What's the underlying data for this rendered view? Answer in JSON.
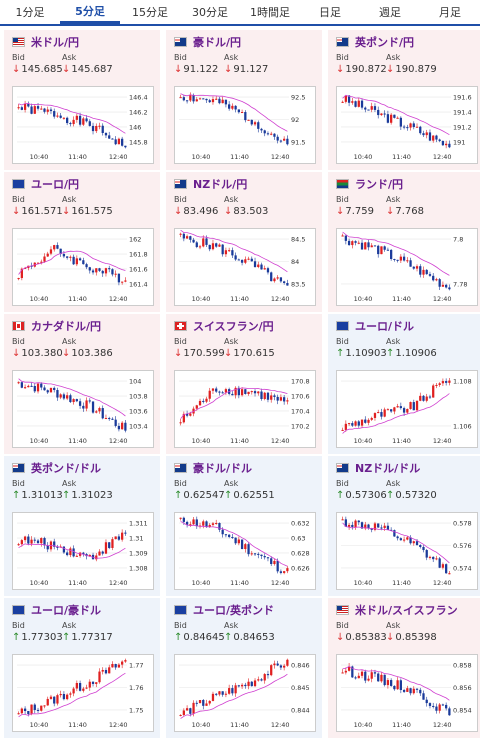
{
  "tabs": [
    {
      "label": "1分足",
      "active": false
    },
    {
      "label": "5分足",
      "active": true
    },
    {
      "label": "15分足",
      "active": false
    },
    {
      "label": "30分足",
      "active": false
    },
    {
      "label": "1時間足",
      "active": false
    },
    {
      "label": "日足",
      "active": false
    },
    {
      "label": "週足",
      "active": false
    },
    {
      "label": "月足",
      "active": false
    }
  ],
  "bid_label": "Bid",
  "ask_label": "Ask",
  "time_labels": [
    "10:40",
    "11:40",
    "12:40"
  ],
  "colors": {
    "title": "#6a1f8e",
    "down": "#d33333",
    "up": "#2a8a2a",
    "bull": "#e02020",
    "bear": "#1a3a9a",
    "ma": "#d040d0",
    "jpy_bg": "#fbeff0",
    "other_bg": "#eef3fa"
  },
  "cards": [
    {
      "title": "米ドル/円",
      "flag": "us-flag",
      "bg": "pink",
      "dir": "down",
      "bid": "145.685",
      "ask": "145.687",
      "yticks": [
        "146.4",
        "146.2",
        "146",
        "145.8"
      ],
      "trend": [
        0.7,
        0.6,
        0.4,
        0.05
      ],
      "seed": 1
    },
    {
      "title": "豪ドル/円",
      "flag": "au-flag",
      "bg": "pink",
      "dir": "down",
      "bid": "91.122",
      "ask": "91.127",
      "yticks": [
        "92.5",
        "92",
        "91.5"
      ],
      "trend": [
        0.9,
        0.8,
        0.5,
        0.05
      ],
      "seed": 2
    },
    {
      "title": "英ポンド/円",
      "flag": "uk-flag",
      "bg": "pink",
      "dir": "down",
      "bid": "190.872",
      "ask": "190.879",
      "yticks": [
        "191.6",
        "191.4",
        "191.2",
        "191"
      ],
      "trend": [
        0.85,
        0.6,
        0.35,
        0.05
      ],
      "seed": 3
    },
    {
      "title": "ユーロ/円",
      "flag": "eu-flag",
      "bg": "pink",
      "dir": "down",
      "bid": "161.571",
      "ask": "161.575",
      "yticks": [
        "162",
        "161.8",
        "161.6",
        "161.4"
      ],
      "trend": [
        0.3,
        0.7,
        0.4,
        0.2
      ],
      "seed": 4
    },
    {
      "title": "NZドル/円",
      "flag": "nz-flag",
      "bg": "pink",
      "dir": "down",
      "bid": "83.496",
      "ask": "83.503",
      "yticks": [
        "84.5",
        "84",
        "83.5"
      ],
      "trend": [
        0.9,
        0.75,
        0.45,
        0.05
      ],
      "seed": 5
    },
    {
      "title": "ランド/円",
      "flag": "za-flag",
      "bg": "pink",
      "dir": "down",
      "bid": "7.759",
      "ask": "7.768",
      "yticks": [
        "7.8",
        "7.78"
      ],
      "trend": [
        0.9,
        0.7,
        0.4,
        0.05
      ],
      "seed": 6
    },
    {
      "title": "カナダドル/円",
      "flag": "ca-flag",
      "bg": "pink",
      "dir": "down",
      "bid": "103.380",
      "ask": "103.386",
      "yticks": [
        "104",
        "103.8",
        "103.6",
        "103.4"
      ],
      "trend": [
        0.85,
        0.7,
        0.45,
        0.05
      ],
      "seed": 7
    },
    {
      "title": "スイスフラン/円",
      "flag": "ch-flag",
      "bg": "pink",
      "dir": "down",
      "bid": "170.599",
      "ask": "170.615",
      "yticks": [
        "170.8",
        "170.6",
        "170.4",
        "170.2"
      ],
      "trend": [
        0.2,
        0.75,
        0.7,
        0.5
      ],
      "seed": 8
    },
    {
      "title": "ユーロ/ドル",
      "flag": "eu-flag",
      "bg": "blue",
      "dir": "up",
      "bid": "1.10903",
      "ask": "1.10906",
      "yticks": [
        "1.108",
        "1.106"
      ],
      "trend": [
        0.1,
        0.3,
        0.45,
        0.95
      ],
      "seed": 9
    },
    {
      "title": "英ポンド/ドル",
      "flag": "uk-flag",
      "bg": "blue",
      "dir": "up",
      "bid": "1.31013",
      "ask": "1.31023",
      "yticks": [
        "1.311",
        "1.31",
        "1.309",
        "1.308"
      ],
      "trend": [
        0.6,
        0.5,
        0.3,
        0.7
      ],
      "seed": 10
    },
    {
      "title": "豪ドル/ドル",
      "flag": "au-flag",
      "bg": "blue",
      "dir": "up",
      "bid": "0.62547",
      "ask": "0.62551",
      "yticks": [
        "0.632",
        "0.63",
        "0.628",
        "0.626"
      ],
      "trend": [
        0.95,
        0.8,
        0.4,
        0.05
      ],
      "seed": 11
    },
    {
      "title": "NZドル/ドル",
      "flag": "nz-flag",
      "bg": "blue",
      "dir": "up",
      "bid": "0.57306",
      "ask": "0.57320",
      "yticks": [
        "0.578",
        "0.576",
        "0.574"
      ],
      "trend": [
        0.9,
        0.8,
        0.5,
        0.05
      ],
      "seed": 12
    },
    {
      "title": "ユーロ/豪ドル",
      "flag": "eu-flag",
      "bg": "blue",
      "dir": "up",
      "bid": "1.77303",
      "ask": "1.77317",
      "yticks": [
        "1.77",
        "1.76",
        "1.75"
      ],
      "trend": [
        0.05,
        0.3,
        0.6,
        0.95
      ],
      "seed": 13
    },
    {
      "title": "ユーロ/英ポンド",
      "flag": "eu-flag",
      "bg": "blue",
      "dir": "up",
      "bid": "0.84645",
      "ask": "0.84653",
      "yticks": [
        "0.846",
        "0.845",
        "0.844"
      ],
      "trend": [
        0.05,
        0.35,
        0.6,
        0.95
      ],
      "seed": 14
    },
    {
      "title": "米ドル/スイスフラン",
      "flag": "us-flag",
      "bg": "pink",
      "dir": "down",
      "bid": "0.85383",
      "ask": "0.85398",
      "yticks": [
        "0.858",
        "0.856",
        "0.854"
      ],
      "trend": [
        0.8,
        0.65,
        0.45,
        0.05
      ],
      "seed": 15
    }
  ]
}
